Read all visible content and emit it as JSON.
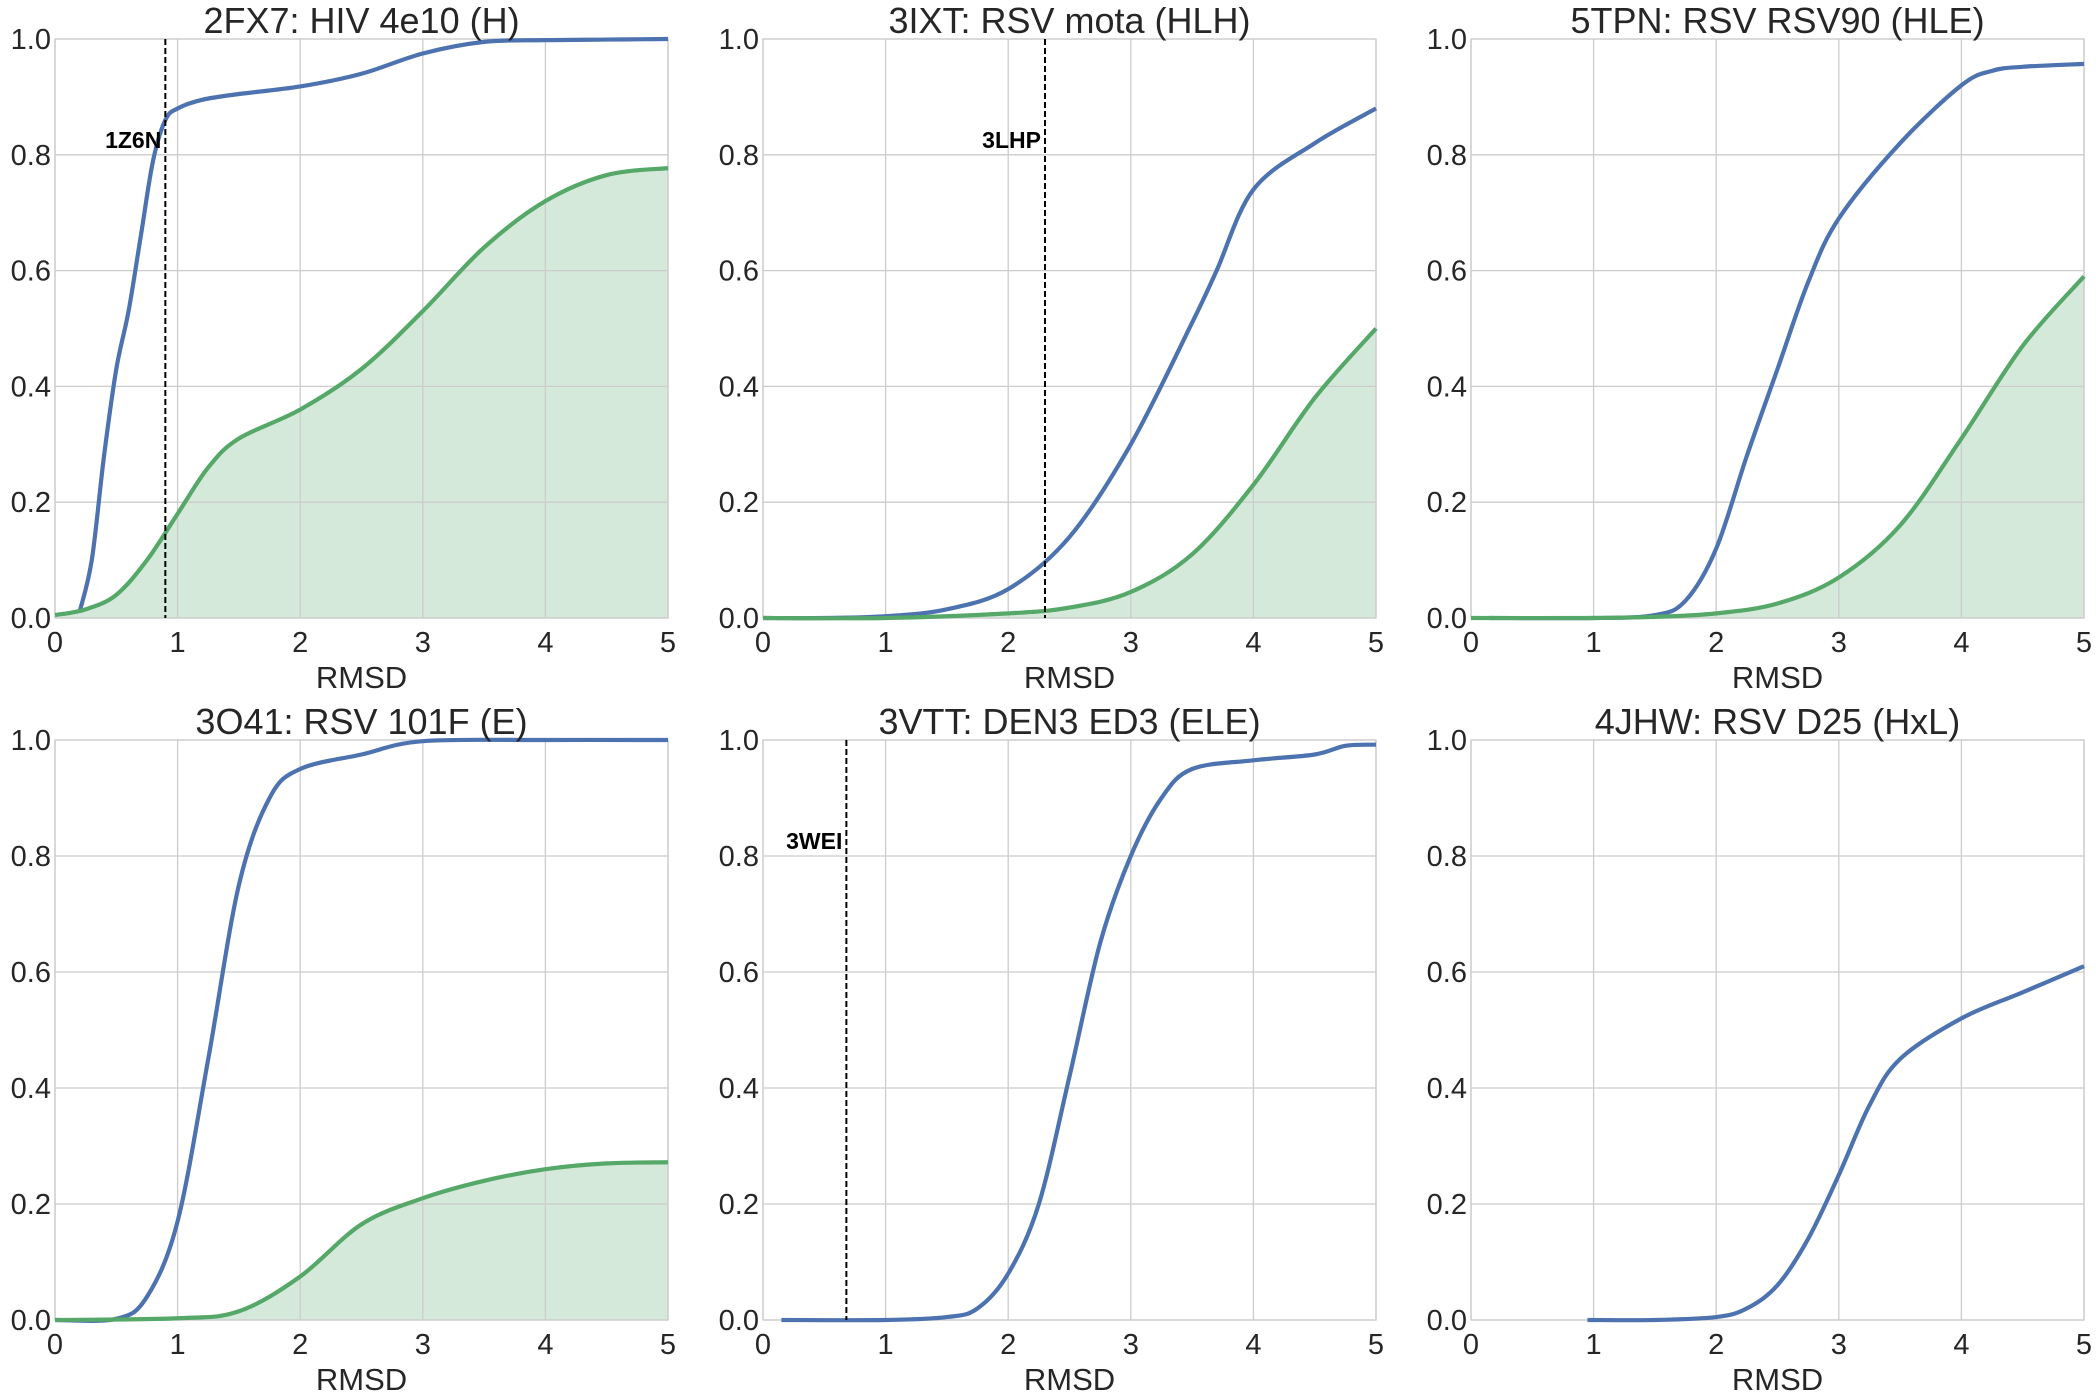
{
  "colors": {
    "series_1": "#4c72b0",
    "series_2": "#55a868",
    "fill": "#55a868",
    "grid": "#cccccc",
    "reference_line": "#000000"
  },
  "chart_data": [
    {
      "type": "line",
      "title": "2FX7: HIV 4e10 (H)",
      "xlabel": "RMSD",
      "ylabel": "",
      "xlim": [
        0,
        5
      ],
      "ylim": [
        0,
        1
      ],
      "xticks": [
        "0",
        "1",
        "2",
        "3",
        "4",
        "5"
      ],
      "yticks": [
        "0.0",
        "0.2",
        "0.4",
        "0.6",
        "0.8",
        "1.0"
      ],
      "grid": true,
      "reference_line": {
        "x": 0.9,
        "label": "1Z6N"
      },
      "series": [
        {
          "color": "#4c72b0",
          "filled": false,
          "x": [
            0.2,
            0.3,
            0.4,
            0.5,
            0.6,
            0.7,
            0.8,
            0.9,
            1.0,
            1.2,
            1.5,
            2.0,
            2.5,
            3.0,
            3.5,
            4.0,
            4.5,
            5.0
          ],
          "y": [
            0.01,
            0.1,
            0.28,
            0.43,
            0.53,
            0.66,
            0.79,
            0.86,
            0.88,
            0.895,
            0.905,
            0.918,
            0.94,
            0.975,
            0.995,
            0.998,
            0.999,
            1.0
          ]
        },
        {
          "color": "#55a868",
          "filled": true,
          "x": [
            0.0,
            0.25,
            0.5,
            0.75,
            1.0,
            1.25,
            1.5,
            2.0,
            2.5,
            3.0,
            3.5,
            4.0,
            4.5,
            5.0
          ],
          "y": [
            0.005,
            0.015,
            0.04,
            0.1,
            0.18,
            0.26,
            0.31,
            0.36,
            0.43,
            0.53,
            0.64,
            0.72,
            0.765,
            0.777
          ]
        }
      ]
    },
    {
      "type": "line",
      "title": "3IXT: RSV mota (HLH)",
      "xlabel": "RMSD",
      "ylabel": "",
      "xlim": [
        0,
        5
      ],
      "ylim": [
        0,
        1
      ],
      "xticks": [
        "0",
        "1",
        "2",
        "3",
        "4",
        "5"
      ],
      "yticks": [
        "0.0",
        "0.2",
        "0.4",
        "0.6",
        "0.8",
        "1.0"
      ],
      "grid": true,
      "reference_line": {
        "x": 2.3,
        "label": "3LHP"
      },
      "series": [
        {
          "color": "#4c72b0",
          "filled": false,
          "x": [
            0.0,
            0.5,
            1.0,
            1.5,
            2.0,
            2.5,
            3.0,
            3.5,
            3.7,
            4.0,
            4.5,
            5.0
          ],
          "y": [
            0.0,
            0.0,
            0.003,
            0.015,
            0.05,
            0.14,
            0.3,
            0.51,
            0.6,
            0.74,
            0.82,
            0.88
          ]
        },
        {
          "color": "#55a868",
          "filled": true,
          "x": [
            0.0,
            1.0,
            2.0,
            2.5,
            3.0,
            3.5,
            4.0,
            4.5,
            5.0
          ],
          "y": [
            0.0,
            0.0,
            0.008,
            0.018,
            0.045,
            0.11,
            0.23,
            0.38,
            0.5
          ]
        }
      ]
    },
    {
      "type": "line",
      "title": "5TPN: RSV RSV90 (HLE)",
      "xlabel": "RMSD",
      "ylabel": "",
      "xlim": [
        0,
        5
      ],
      "ylim": [
        0,
        1
      ],
      "xticks": [
        "0",
        "1",
        "2",
        "3",
        "4",
        "5"
      ],
      "yticks": [
        "0.0",
        "0.2",
        "0.4",
        "0.6",
        "0.8",
        "1.0"
      ],
      "grid": true,
      "series": [
        {
          "color": "#4c72b0",
          "filled": false,
          "x": [
            0.15,
            1.0,
            1.5,
            1.75,
            2.0,
            2.25,
            2.5,
            2.75,
            3.0,
            3.5,
            4.0,
            4.25,
            4.5,
            5.0
          ],
          "y": [
            0.0,
            0.0,
            0.005,
            0.03,
            0.12,
            0.28,
            0.43,
            0.58,
            0.69,
            0.82,
            0.92,
            0.945,
            0.952,
            0.957
          ]
        },
        {
          "color": "#55a868",
          "filled": true,
          "x": [
            0.0,
            1.0,
            1.5,
            2.0,
            2.5,
            3.0,
            3.5,
            4.0,
            4.5,
            5.0
          ],
          "y": [
            0.0,
            0.0,
            0.002,
            0.008,
            0.025,
            0.07,
            0.16,
            0.31,
            0.47,
            0.59
          ]
        }
      ]
    },
    {
      "type": "line",
      "title": "3O41: RSV 101F (E)",
      "xlabel": "RMSD",
      "ylabel": "",
      "xlim": [
        0,
        5
      ],
      "ylim": [
        0,
        1
      ],
      "xticks": [
        "0",
        "1",
        "2",
        "3",
        "4",
        "5"
      ],
      "yticks": [
        "0.0",
        "0.2",
        "0.4",
        "0.6",
        "0.8",
        "1.0"
      ],
      "grid": true,
      "series": [
        {
          "color": "#4c72b0",
          "filled": false,
          "x": [
            0.0,
            0.5,
            0.75,
            1.0,
            1.25,
            1.5,
            1.75,
            2.0,
            2.5,
            3.0,
            4.0,
            5.0
          ],
          "y": [
            0.0,
            0.002,
            0.04,
            0.17,
            0.45,
            0.75,
            0.9,
            0.95,
            0.975,
            0.998,
            1.0,
            1.0
          ]
        },
        {
          "color": "#55a868",
          "filled": true,
          "x": [
            0.0,
            1.0,
            1.5,
            2.0,
            2.5,
            3.0,
            3.5,
            4.0,
            4.5,
            5.0
          ],
          "y": [
            0.0,
            0.003,
            0.015,
            0.075,
            0.165,
            0.21,
            0.24,
            0.26,
            0.27,
            0.272
          ]
        }
      ]
    },
    {
      "type": "line",
      "title": "3VTT: DEN3 ED3 (ELE)",
      "xlabel": "RMSD",
      "ylabel": "",
      "xlim": [
        0,
        5
      ],
      "ylim": [
        0,
        1
      ],
      "xticks": [
        "0",
        "1",
        "2",
        "3",
        "4",
        "5"
      ],
      "yticks": [
        "0.0",
        "0.2",
        "0.4",
        "0.6",
        "0.8",
        "1.0"
      ],
      "grid": true,
      "reference_line": {
        "x": 0.68,
        "label": "3WEI"
      },
      "series": [
        {
          "color": "#4c72b0",
          "filled": false,
          "x": [
            0.15,
            1.0,
            1.5,
            1.75,
            2.0,
            2.25,
            2.5,
            2.75,
            3.0,
            3.25,
            3.5,
            4.0,
            4.5,
            4.75,
            5.0
          ],
          "y": [
            0.0,
            0.0,
            0.005,
            0.02,
            0.08,
            0.2,
            0.42,
            0.65,
            0.8,
            0.9,
            0.95,
            0.965,
            0.975,
            0.99,
            0.992
          ]
        }
      ]
    },
    {
      "type": "line",
      "title": "4JHW: RSV D25 (HxL)",
      "xlabel": "RMSD",
      "ylabel": "",
      "xlim": [
        0,
        5
      ],
      "ylim": [
        0,
        1
      ],
      "xticks": [
        "0",
        "1",
        "2",
        "3",
        "4",
        "5"
      ],
      "yticks": [
        "0.0",
        "0.2",
        "0.4",
        "0.6",
        "0.8",
        "1.0"
      ],
      "grid": true,
      "series": [
        {
          "color": "#4c72b0",
          "filled": false,
          "x": [
            0.95,
            1.5,
            2.0,
            2.25,
            2.5,
            2.75,
            3.0,
            3.25,
            3.5,
            4.0,
            4.5,
            5.0
          ],
          "y": [
            0.0,
            0.0,
            0.005,
            0.02,
            0.06,
            0.14,
            0.25,
            0.37,
            0.45,
            0.52,
            0.565,
            0.61
          ]
        }
      ]
    }
  ]
}
